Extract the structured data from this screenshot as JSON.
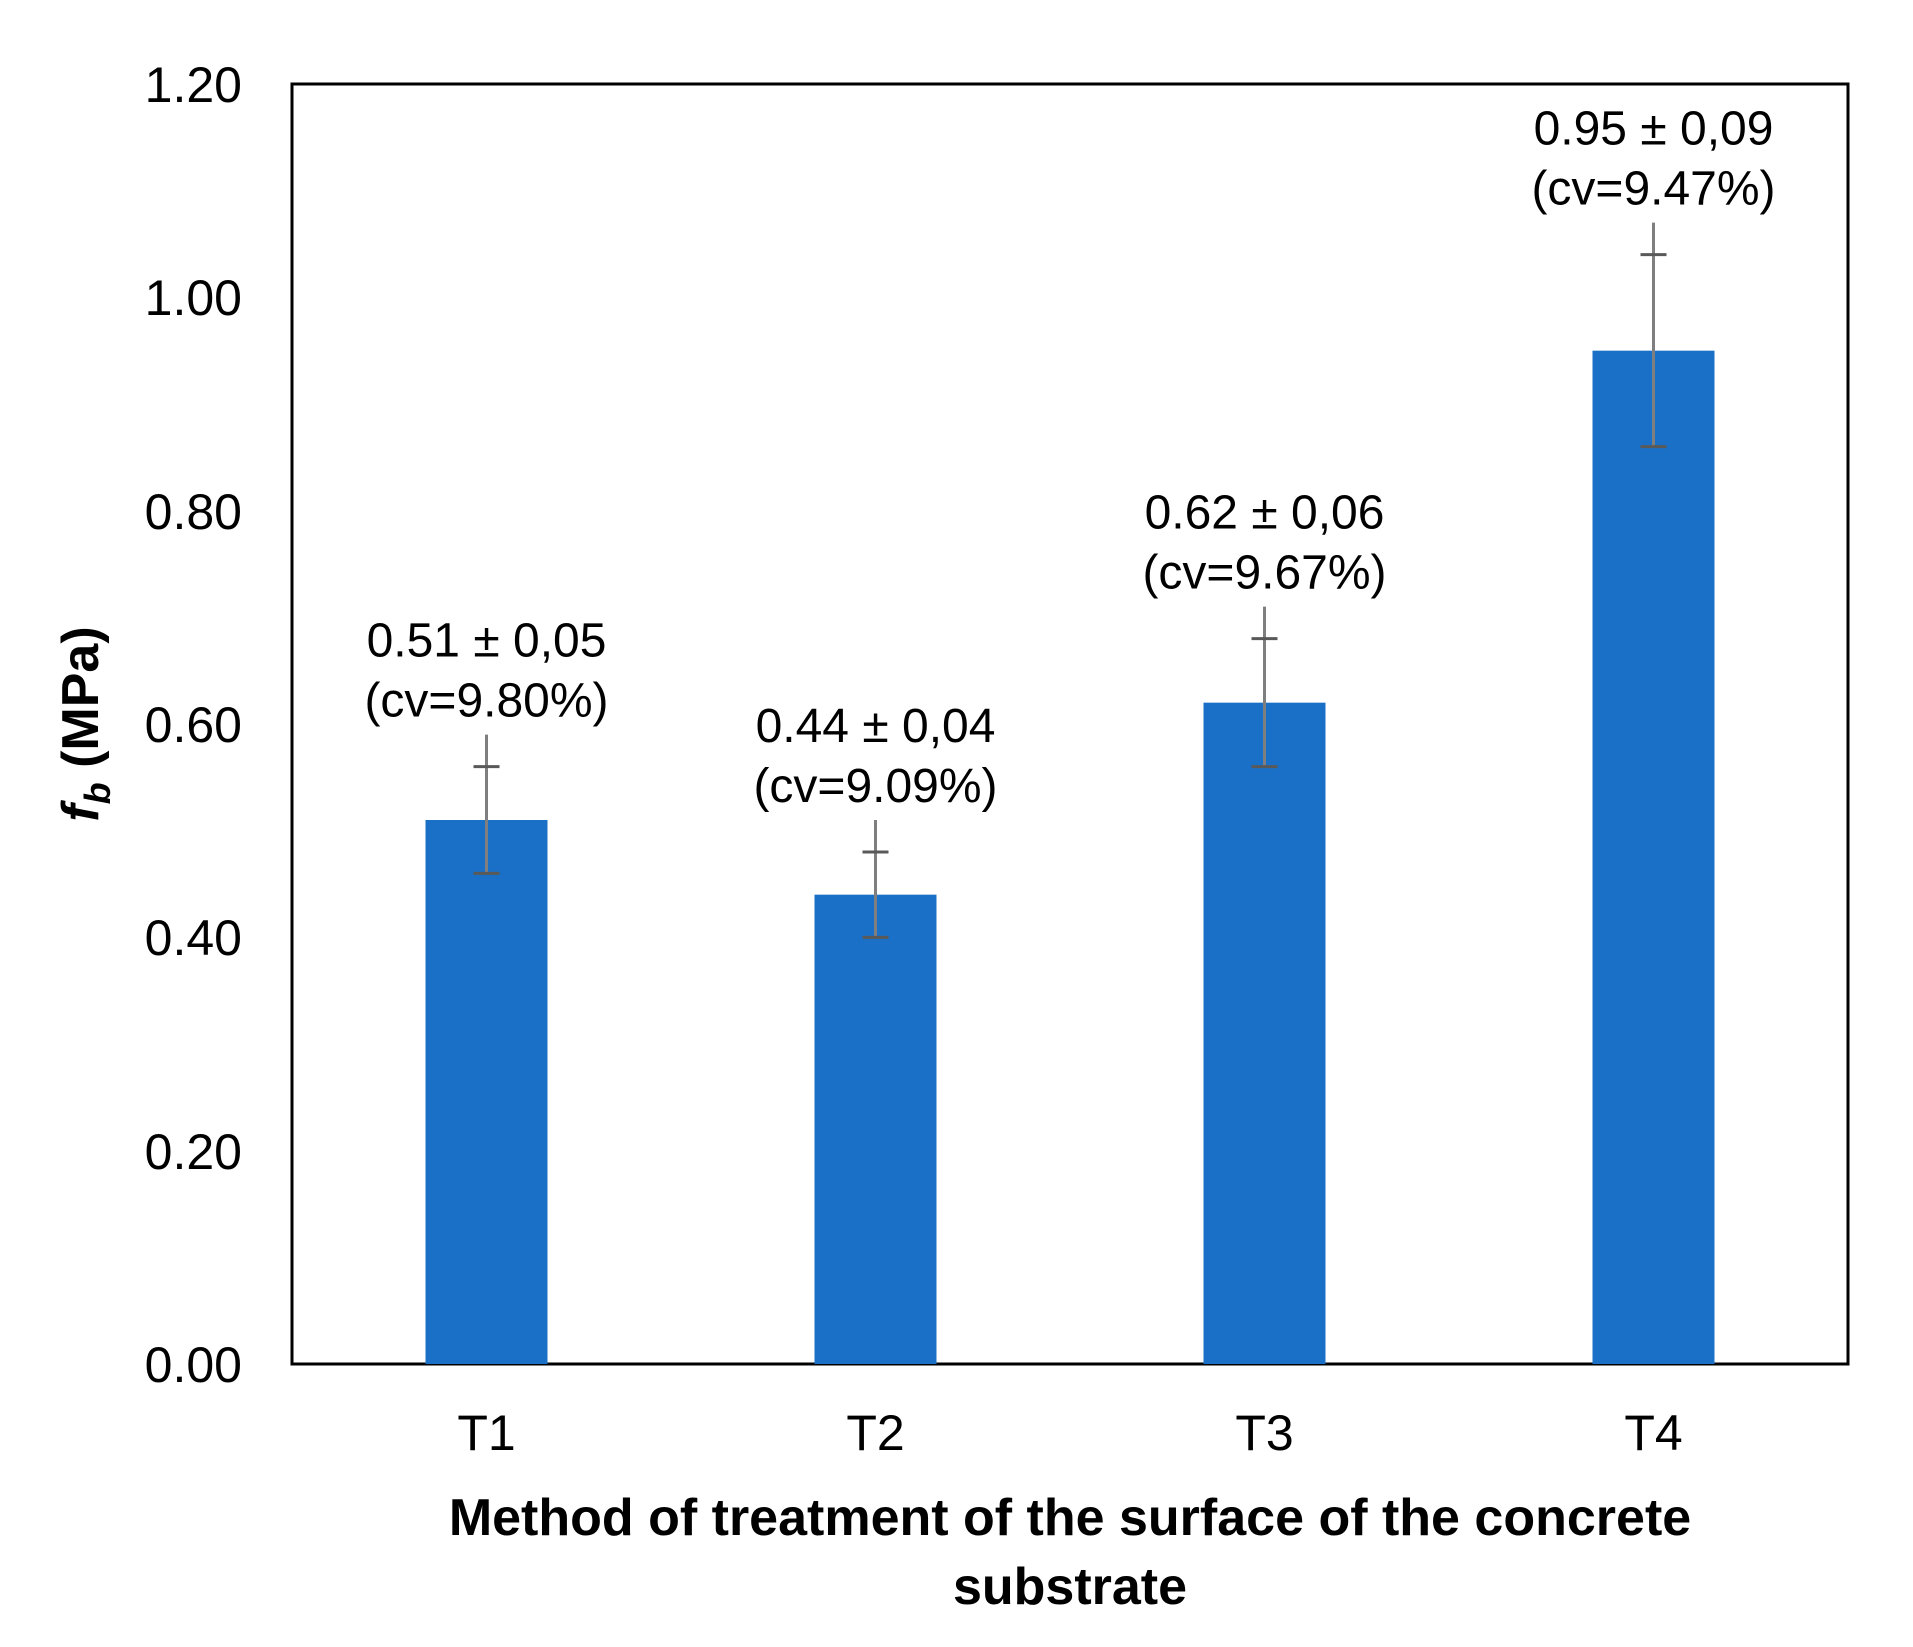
{
  "chart_data": {
    "type": "bar",
    "categories": [
      "T1",
      "T2",
      "T3",
      "T4"
    ],
    "values": [
      0.51,
      0.44,
      0.62,
      0.95
    ],
    "errors": [
      0.05,
      0.04,
      0.06,
      0.09
    ],
    "labels": [
      {
        "mean": "0.51 ± 0,05",
        "cv": "(cv=9.80%)"
      },
      {
        "mean": "0.44 ± 0,04",
        "cv": "(cv=9.09%)"
      },
      {
        "mean": "0.62 ± 0,06",
        "cv": "(cv=9.67%)"
      },
      {
        "mean": "0.95 ± 0,09",
        "cv": "(cv=9.47%)"
      }
    ],
    "ylabel_symbol": "f",
    "ylabel_subscript": "b",
    "ylabel_unit": " (MPa)",
    "xlabel_line1": "Method of treatment of the surface of the concrete",
    "xlabel_line2": "substrate",
    "yticks": [
      "0.00",
      "0.20",
      "0.40",
      "0.60",
      "0.80",
      "1.00",
      "1.20"
    ],
    "ylim": [
      0,
      1.2
    ],
    "grid": false,
    "bar_color": "#1A70C6",
    "error_bar_color": "#7F7F7F"
  }
}
